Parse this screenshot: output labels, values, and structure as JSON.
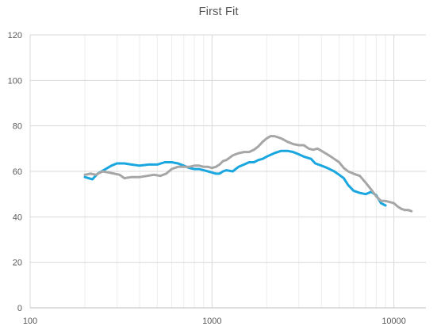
{
  "chart_data": {
    "type": "line",
    "title": "First Fit",
    "xlabel": "",
    "ylabel": "",
    "xscale": "log",
    "xlim": [
      100,
      15000
    ],
    "ylim": [
      0,
      120
    ],
    "x_ticks": [
      100,
      1000,
      10000
    ],
    "x_tick_labels": [
      "100",
      "1000",
      "10000"
    ],
    "y_ticks": [
      0,
      20,
      40,
      60,
      80,
      100,
      120
    ],
    "y_tick_labels": [
      "0",
      "20",
      "40",
      "60",
      "80",
      "100",
      "120"
    ],
    "grid": {
      "major": true,
      "minor_x": true
    },
    "legend": "none",
    "series": [
      {
        "color": "#1aa7e0",
        "x": [
          200,
          220,
          235,
          260,
          280,
          300,
          330,
          360,
          400,
          450,
          500,
          550,
          600,
          650,
          700,
          750,
          800,
          850,
          900,
          950,
          1000,
          1050,
          1100,
          1150,
          1200,
          1300,
          1400,
          1500,
          1600,
          1700,
          1800,
          1900,
          2000,
          2200,
          2400,
          2600,
          2800,
          3000,
          3200,
          3500,
          3700,
          4000,
          4300,
          4700,
          5000,
          5300,
          5600,
          6000,
          6500,
          7000,
          7500,
          8000,
          8500,
          9000
        ],
        "values": [
          57.5,
          56.5,
          59,
          61,
          62.5,
          63.5,
          63.5,
          63,
          62.5,
          63,
          63,
          64,
          64,
          63.5,
          62.5,
          61.5,
          61,
          61,
          60.5,
          60,
          59.5,
          59,
          59,
          60,
          60.5,
          60,
          62,
          63,
          64,
          64,
          65,
          65.5,
          66.5,
          68,
          69,
          69,
          68.5,
          67.5,
          66.5,
          65.5,
          63.5,
          62.5,
          61.5,
          60,
          58.5,
          57,
          54,
          51.5,
          50.5,
          50,
          51,
          49.5,
          46,
          45
        ]
      },
      {
        "color": "#a6a6a6",
        "x": [
          200,
          215,
          230,
          250,
          270,
          290,
          310,
          330,
          360,
          400,
          440,
          480,
          520,
          560,
          600,
          650,
          700,
          750,
          800,
          850,
          900,
          950,
          1000,
          1050,
          1100,
          1150,
          1200,
          1300,
          1400,
          1500,
          1600,
          1700,
          1800,
          1900,
          2000,
          2100,
          2200,
          2300,
          2400,
          2600,
          2800,
          3000,
          3200,
          3400,
          3600,
          3800,
          4000,
          4300,
          4600,
          5000,
          5300,
          5600,
          6000,
          6500,
          7000,
          7500,
          8000,
          8500,
          9000,
          9500,
          10000,
          10500,
          11000,
          11500,
          12000,
          12500
        ],
        "values": [
          58.5,
          59,
          58.5,
          60,
          59.5,
          59,
          58.5,
          57,
          57.5,
          57.5,
          58,
          58.5,
          58,
          59,
          61,
          62,
          62,
          62,
          62.5,
          62.5,
          62,
          62,
          61.5,
          62,
          63,
          64.5,
          65,
          67,
          68,
          68.5,
          68.5,
          69.5,
          71,
          73,
          74.5,
          75.5,
          75.5,
          75,
          74.5,
          73,
          72,
          71.5,
          71.5,
          70,
          69.5,
          70,
          69,
          67.5,
          66,
          64,
          61.5,
          60,
          59,
          58,
          55,
          52,
          49,
          47,
          47,
          46.5,
          46,
          44.5,
          43.5,
          43,
          43,
          42.5
        ]
      }
    ]
  }
}
